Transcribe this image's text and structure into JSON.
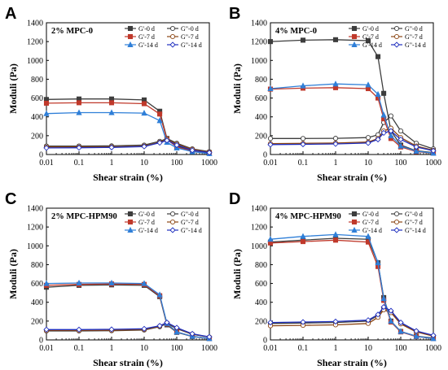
{
  "figure": {
    "series_styles": [
      {
        "name": "G'-0 d",
        "color": "#3d3d3d",
        "filled": true,
        "marker": "square"
      },
      {
        "name": "G''-0 d",
        "color": "#3d3d3d",
        "filled": false,
        "marker": "circle"
      },
      {
        "name": "G'-7 d",
        "color": "#c0392b",
        "filled": true,
        "marker": "square"
      },
      {
        "name": "G''-7 d",
        "color": "#8b4513",
        "filled": false,
        "marker": "circle"
      },
      {
        "name": "G'-14 d",
        "color": "#2f7fd8",
        "filled": true,
        "marker": "triangle"
      },
      {
        "name": "G''-14 d",
        "color": "#1f2fbf",
        "filled": false,
        "marker": "diamond"
      }
    ]
  },
  "chart_data": [
    {
      "type": "line",
      "panel_letter": "A",
      "title": "2% MPC-0",
      "xlabel": "Shear strain (%)",
      "ylabel": "Moduli  (Pa)",
      "xscale": "log",
      "xlim": [
        0.01,
        1000
      ],
      "ylim": [
        0,
        1400
      ],
      "xticks": [
        "0.01",
        "0.1",
        "1",
        "10",
        "100",
        "1000"
      ],
      "yticks": [
        "0",
        "200",
        "400",
        "600",
        "800",
        "1000",
        "1200",
        "1400"
      ],
      "legend_labels": [
        "G'-0 d",
        "G\"-0 d",
        "G'-7 d",
        "G\"-7 d",
        "G'-14 d",
        "G\"-14 d"
      ],
      "legend_position": "top-right",
      "series": [
        {
          "name": "G'-0 d",
          "x": [
            0.01,
            0.1,
            1,
            10,
            30,
            50,
            100,
            300,
            1000
          ],
          "y": [
            585,
            590,
            590,
            580,
            460,
            170,
            90,
            40,
            20
          ]
        },
        {
          "name": "G''-0 d",
          "x": [
            0.01,
            0.1,
            1,
            10,
            30,
            50,
            100,
            300,
            1000
          ],
          "y": [
            90,
            90,
            92,
            100,
            140,
            170,
            120,
            60,
            30
          ]
        },
        {
          "name": "G'-7 d",
          "x": [
            0.01,
            0.1,
            1,
            10,
            30,
            50,
            100,
            300,
            1000
          ],
          "y": [
            545,
            550,
            550,
            540,
            430,
            160,
            80,
            35,
            15
          ]
        },
        {
          "name": "G''-7 d",
          "x": [
            0.01,
            0.1,
            1,
            10,
            30,
            50,
            100,
            300,
            1000
          ],
          "y": [
            80,
            80,
            82,
            90,
            130,
            160,
            110,
            55,
            25
          ]
        },
        {
          "name": "G'-14 d",
          "x": [
            0.01,
            0.1,
            1,
            10,
            30,
            50,
            100,
            300,
            1000
          ],
          "y": [
            435,
            445,
            445,
            440,
            360,
            130,
            70,
            30,
            10
          ]
        },
        {
          "name": "G''-14 d",
          "x": [
            0.01,
            0.1,
            1,
            10,
            30,
            50,
            100,
            300,
            1000
          ],
          "y": [
            70,
            72,
            75,
            85,
            125,
            150,
            100,
            45,
            20
          ]
        }
      ]
    },
    {
      "type": "line",
      "panel_letter": "B",
      "title": "4% MPC-0",
      "xlabel": "Shear strain (%)",
      "ylabel": "Moduli  (Pa)",
      "xscale": "log",
      "xlim": [
        0.01,
        1000
      ],
      "ylim": [
        0,
        1400
      ],
      "xticks": [
        "0.01",
        "0.1",
        "1",
        "10",
        "100",
        "1000"
      ],
      "yticks": [
        "0",
        "200",
        "400",
        "600",
        "800",
        "1000",
        "1200",
        "1400"
      ],
      "legend_labels": [
        "G'-0 d",
        "G\"-0 d",
        "G'-7 d",
        "G\"-7 d",
        "G'-14 d",
        "G\"-14 d"
      ],
      "legend_position": "top-right",
      "series": [
        {
          "name": "G'-0 d",
          "x": [
            0.01,
            0.1,
            1,
            10,
            20,
            30,
            50,
            100,
            300,
            1000
          ],
          "y": [
            1200,
            1215,
            1220,
            1210,
            1040,
            650,
            250,
            100,
            40,
            20
          ]
        },
        {
          "name": "G''-0 d",
          "x": [
            0.01,
            0.1,
            1,
            10,
            20,
            30,
            50,
            100,
            300,
            1000
          ],
          "y": [
            170,
            170,
            172,
            180,
            210,
            340,
            410,
            250,
            120,
            60
          ]
        },
        {
          "name": "G'-7 d",
          "x": [
            0.01,
            0.1,
            1,
            10,
            20,
            30,
            50,
            100,
            300,
            1000
          ],
          "y": [
            695,
            705,
            710,
            700,
            600,
            380,
            170,
            80,
            30,
            15
          ]
        },
        {
          "name": "G''-7 d",
          "x": [
            0.01,
            0.1,
            1,
            10,
            20,
            30,
            50,
            100,
            300,
            1000
          ],
          "y": [
            115,
            118,
            122,
            132,
            170,
            250,
            280,
            180,
            90,
            45
          ]
        },
        {
          "name": "G'-14 d",
          "x": [
            0.01,
            0.1,
            1,
            10,
            20,
            30,
            50,
            100,
            300,
            1000
          ],
          "y": [
            700,
            730,
            750,
            740,
            640,
            420,
            200,
            90,
            35,
            15
          ]
        },
        {
          "name": "G''-14 d",
          "x": [
            0.01,
            0.1,
            1,
            10,
            20,
            30,
            50,
            100,
            300,
            1000
          ],
          "y": [
            105,
            108,
            112,
            122,
            160,
            230,
            250,
            160,
            80,
            40
          ]
        }
      ]
    },
    {
      "type": "line",
      "panel_letter": "C",
      "title": "2% MPC-HPM90",
      "xlabel": "Shear strain (%)",
      "ylabel": "Moduli  (Pa)",
      "xscale": "log",
      "xlim": [
        0.01,
        1000
      ],
      "ylim": [
        0,
        1400
      ],
      "xticks": [
        "0.01",
        "0.1",
        "1",
        "10",
        "100",
        "1000"
      ],
      "yticks": [
        "0",
        "200",
        "400",
        "600",
        "800",
        "1000",
        "1200",
        "1400"
      ],
      "legend_labels": [
        "G'-0 d",
        "G\"-0 d",
        "G'-7 d",
        "G\"-7 d",
        "G'-14 d",
        "G\"-14 d"
      ],
      "legend_position": "top-right",
      "series": [
        {
          "name": "G'-0 d",
          "x": [
            0.01,
            0.1,
            1,
            10,
            30,
            50,
            100,
            300,
            1000
          ],
          "y": [
            560,
            580,
            585,
            580,
            460,
            160,
            80,
            35,
            15
          ]
        },
        {
          "name": "G''-0 d",
          "x": [
            0.01,
            0.1,
            1,
            10,
            30,
            50,
            100,
            300,
            1000
          ],
          "y": [
            95,
            95,
            98,
            105,
            140,
            175,
            120,
            60,
            30
          ]
        },
        {
          "name": "G'-7 d",
          "x": [
            0.01,
            0.1,
            1,
            10,
            30,
            50,
            100,
            300,
            1000
          ],
          "y": [
            580,
            590,
            595,
            590,
            470,
            170,
            85,
            38,
            15
          ]
        },
        {
          "name": "G''-7 d",
          "x": [
            0.01,
            0.1,
            1,
            10,
            30,
            50,
            100,
            300,
            1000
          ],
          "y": [
            100,
            100,
            102,
            110,
            145,
            180,
            125,
            62,
            30
          ]
        },
        {
          "name": "G'-14 d",
          "x": [
            0.01,
            0.1,
            1,
            10,
            30,
            50,
            100,
            300,
            1000
          ],
          "y": [
            600,
            605,
            605,
            600,
            480,
            175,
            85,
            38,
            15
          ]
        },
        {
          "name": "G''-14 d",
          "x": [
            0.01,
            0.1,
            1,
            10,
            30,
            50,
            100,
            300,
            1000
          ],
          "y": [
            110,
            110,
            112,
            118,
            150,
            185,
            130,
            65,
            32
          ]
        }
      ]
    },
    {
      "type": "line",
      "panel_letter": "D",
      "title": "4% MPC-HPM90",
      "xlabel": "Shear strain (%)",
      "ylabel": "Moduli  (Pa)",
      "xscale": "log",
      "xlim": [
        0.01,
        1000
      ],
      "ylim": [
        0,
        1400
      ],
      "xticks": [
        "0.01",
        "0.1",
        "1",
        "10",
        "100",
        "1000"
      ],
      "yticks": [
        "0",
        "200",
        "400",
        "600",
        "800",
        "1000",
        "1200",
        "1400"
      ],
      "legend_labels": [
        "G'-0 d",
        "G\"-0 d",
        "G'-7 d",
        "G\"-7 d",
        "G'-14 d",
        "G\"-14 d"
      ],
      "legend_position": "top-right",
      "series": [
        {
          "name": "G'-0 d",
          "x": [
            0.01,
            0.1,
            1,
            10,
            20,
            30,
            50,
            100,
            300,
            1000
          ],
          "y": [
            1040,
            1060,
            1080,
            1070,
            820,
            450,
            200,
            90,
            40,
            20
          ]
        },
        {
          "name": "G''-0 d",
          "x": [
            0.01,
            0.1,
            1,
            10,
            20,
            30,
            50,
            100,
            300,
            1000
          ],
          "y": [
            175,
            180,
            185,
            200,
            260,
            340,
            300,
            180,
            90,
            45
          ]
        },
        {
          "name": "G'-7 d",
          "x": [
            0.01,
            0.1,
            1,
            10,
            20,
            30,
            50,
            100,
            300,
            1000
          ],
          "y": [
            1030,
            1045,
            1060,
            1040,
            780,
            420,
            190,
            85,
            35,
            15
          ]
        },
        {
          "name": "G''-7 d",
          "x": [
            0.01,
            0.1,
            1,
            10,
            20,
            30,
            50,
            100,
            300,
            1000
          ],
          "y": [
            150,
            155,
            160,
            175,
            240,
            320,
            290,
            170,
            85,
            40
          ]
        },
        {
          "name": "G'-14 d",
          "x": [
            0.01,
            0.1,
            1,
            10,
            20,
            30,
            50,
            100,
            300,
            1000
          ],
          "y": [
            1070,
            1100,
            1120,
            1100,
            820,
            440,
            200,
            90,
            38,
            15
          ]
        },
        {
          "name": "G''-14 d",
          "x": [
            0.01,
            0.1,
            1,
            10,
            20,
            30,
            50,
            100,
            300,
            1000
          ],
          "y": [
            185,
            190,
            195,
            210,
            270,
            350,
            310,
            185,
            95,
            48
          ]
        }
      ]
    }
  ]
}
